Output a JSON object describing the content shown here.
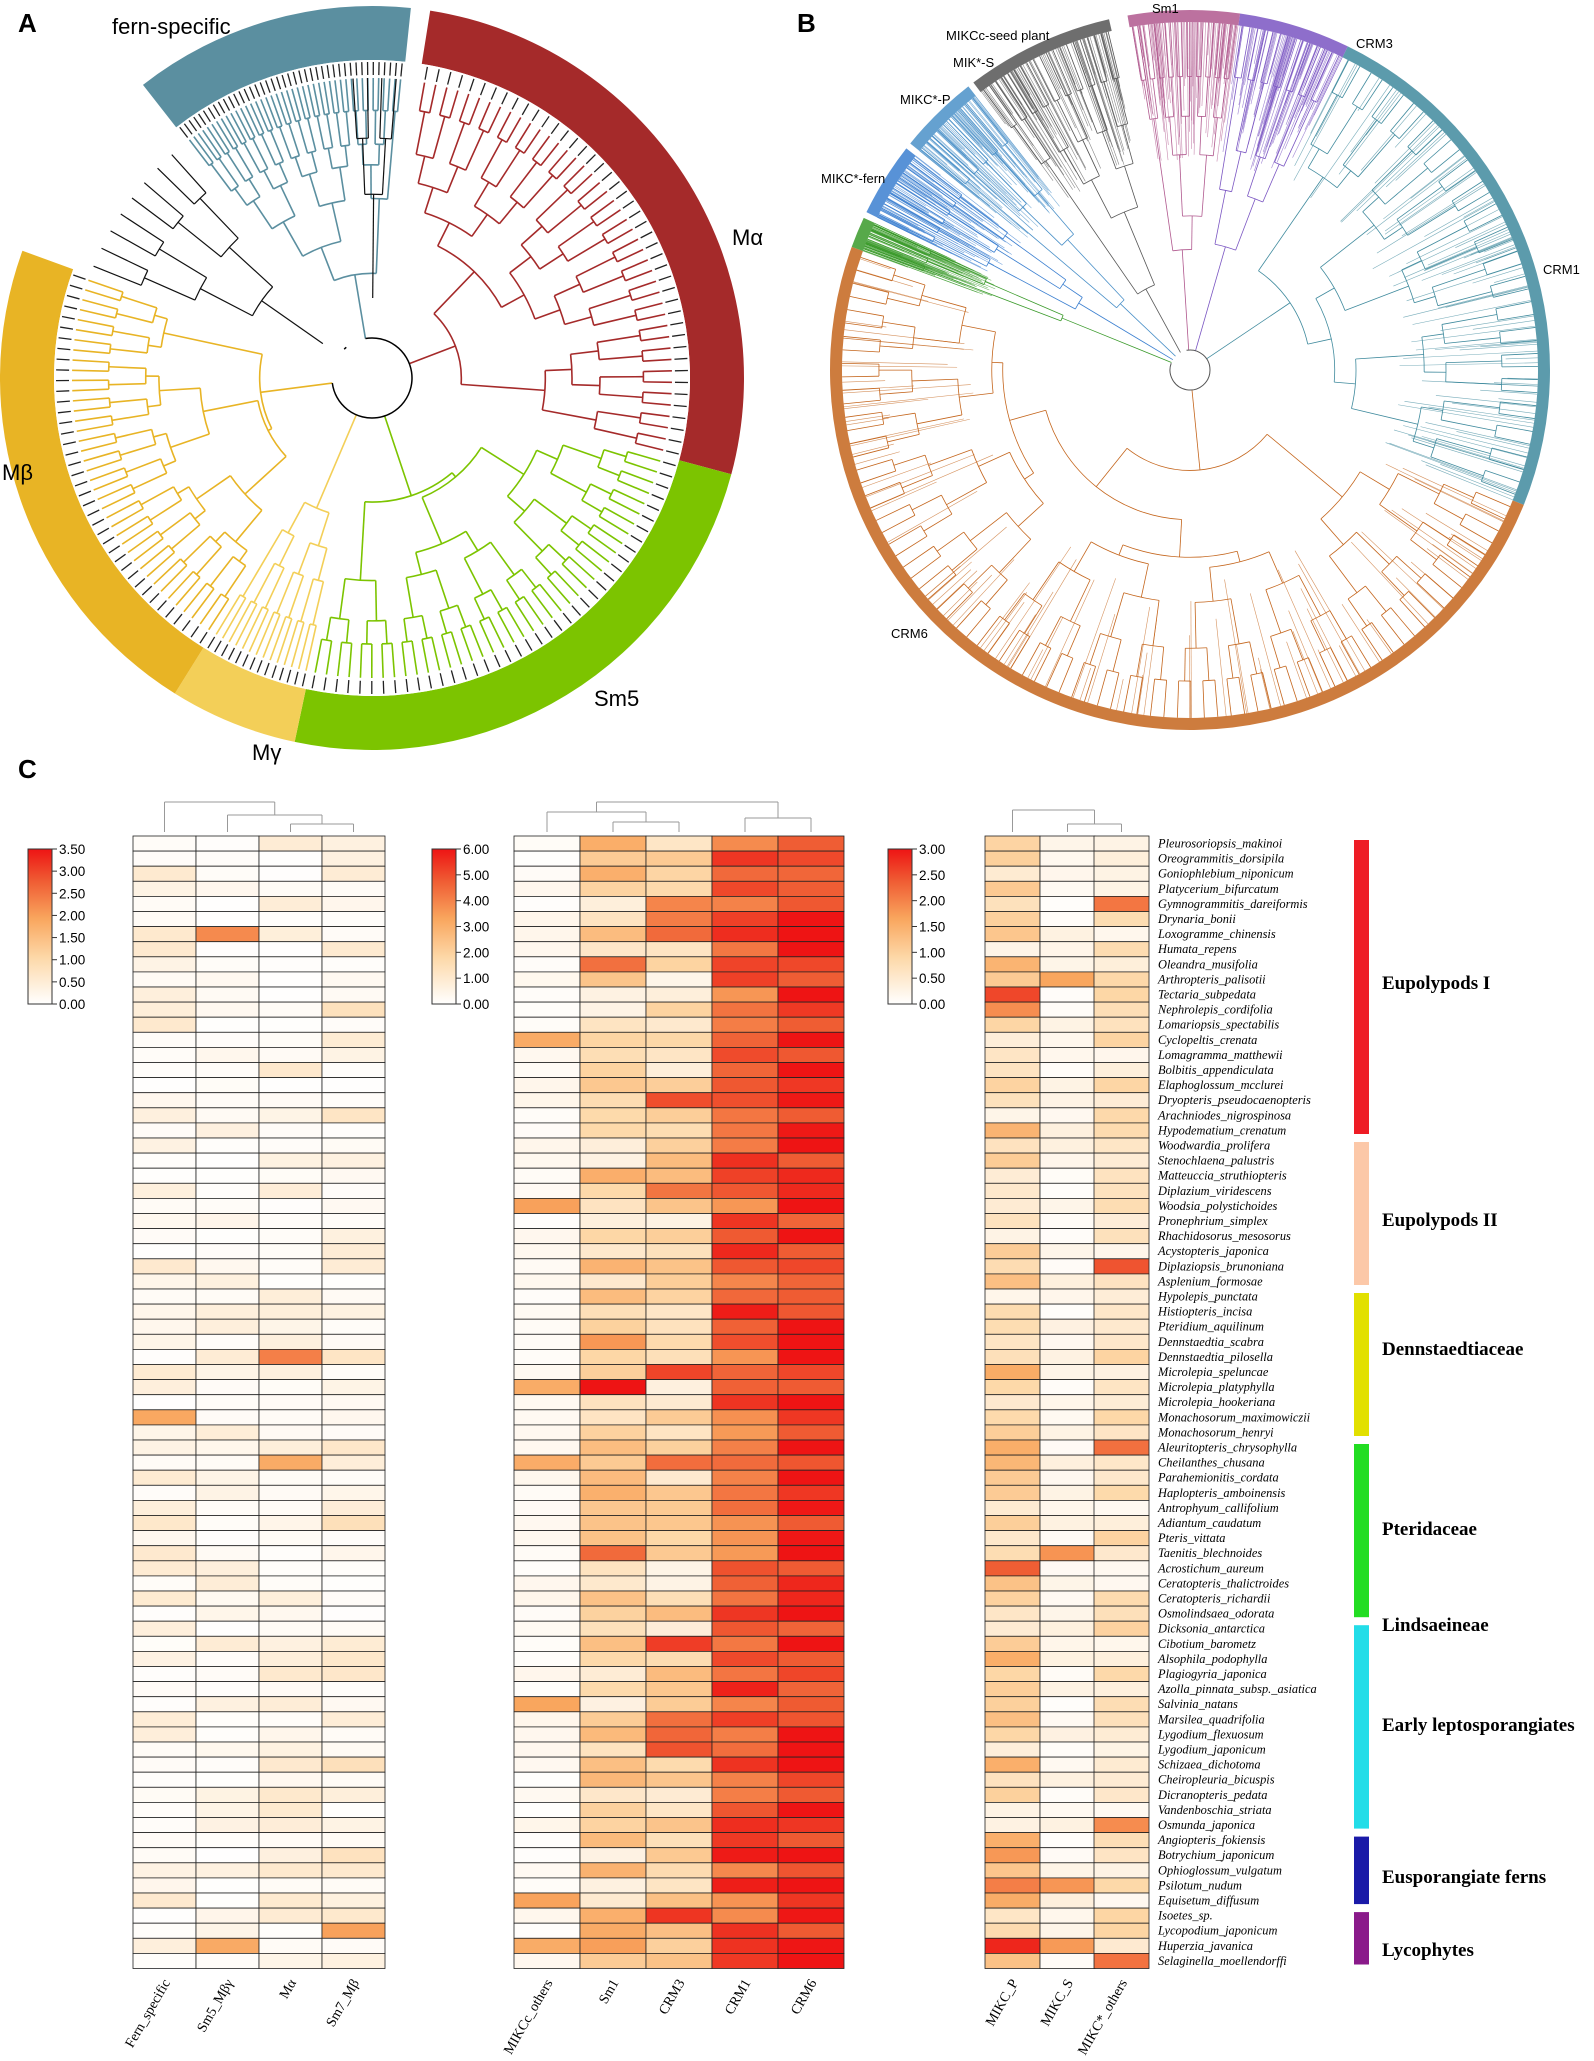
{
  "panels": {
    "a": "A",
    "b": "B",
    "c": "C"
  },
  "tree_a": {
    "clades": [
      {
        "name": "fern-specific",
        "color": "#5b8fa0"
      },
      {
        "name": "Mα",
        "color": "#a52a2a"
      },
      {
        "name": "Sm5",
        "color": "#7cc400"
      },
      {
        "name": "Mγ",
        "color": "#f3cf58"
      },
      {
        "name": "Mβ",
        "color": "#e8b425"
      }
    ]
  },
  "tree_b": {
    "clades": [
      {
        "name": "Sm1",
        "color": "#b0588e"
      },
      {
        "name": "CRM3",
        "color": "#7a55c2"
      },
      {
        "name": "CRM1",
        "color": "#3f8a9d"
      },
      {
        "name": "CRM6",
        "color": "#c4651c"
      },
      {
        "name": "MIKC*-fern",
        "color": "#3a9a2a"
      },
      {
        "name": "MIKC*-P",
        "color": "#3b7fd0"
      },
      {
        "name": "MIK*-S",
        "color": "#4a90c8"
      },
      {
        "name": "MIKCc-seed plant",
        "color": "#555555"
      }
    ]
  },
  "heatmap": {
    "species": [
      "Pleurosoriopsis_makinoi",
      "Oreogrammitis_dorsipila",
      "Goniophlebium_niponicum",
      "Platycerium_bifurcatum",
      "Gymnogrammitis_dareiformis",
      "Drynaria_bonii",
      "Loxogramme_chinensis",
      "Humata_repens",
      "Oleandra_musifolia",
      "Arthropteris_palisotii",
      "Tectaria_subpedata",
      "Nephrolepis_cordifolia",
      "Lomariopsis_spectabilis",
      "Cyclopeltis_crenata",
      "Lomagramma_matthewii",
      "Bolbitis_appendiculata",
      "Elaphoglossum_mcclurei",
      "Dryopteris_pseudocaenopteris",
      "Arachniodes_nigrospinosa",
      "Hypodematium_crenatum",
      "Woodwardia_prolifera",
      "Stenochlaena_palustris",
      "Matteuccia_struthiopteris",
      "Diplazium_viridescens",
      "Woodsia_polystichoides",
      "Pronephrium_simplex",
      "Rhachidosorus_mesosorus",
      "Acystopteris_japonica",
      "Diplaziopsis_brunoniana",
      "Asplenium_formosae",
      "Hypolepis_punctata",
      "Histiopteris_incisa",
      "Pteridium_aquilinum",
      "Dennstaedtia_scabra",
      "Dennstaedtia_pilosella",
      "Microlepia_speluncae",
      "Microlepia_platyphylla",
      "Microlepia_hookeriana",
      "Monachosorum_maximowiczii",
      "Monachosorum_henryi",
      "Aleuritopteris_chrysophylla",
      "Cheilanthes_chusana",
      "Parahemionitis_cordata",
      "Haplopteris_amboinensis",
      "Antrophyum_callifolium",
      "Adiantum_caudatum",
      "Pteris_vittata",
      "Taenitis_blechnoides",
      "Acrostichum_aureum",
      "Ceratopteris_thalictroides",
      "Ceratopteris_richardii",
      "Osmolindsaea_odorata",
      "Dicksonia_antarctica",
      "Cibotium_barometz",
      "Alsophila_podophylla",
      "Plagiogyria_japonica",
      "Azolla_pinnata_subsp._asiatica",
      "Salvinia_natans",
      "Marsilea_quadrifolia",
      "Lygodium_flexuosum",
      "Lygodium_japonicum",
      "Schizaea_dichotoma",
      "Cheiropleuria_bicuspis",
      "Dicranopteris_pedata",
      "Vandenboschia_striata",
      "Osmunda_japonica",
      "Angiopteris_fokiensis",
      "Botrychium_japonicum",
      "Ophioglossum_vulgatum",
      "Psilotum_nudum",
      "Equisetum_diffusum",
      "Isoetes_sp.",
      "Lycopodium_japonicum",
      "Huperzia_javanica",
      "Selaginella_moellendorffi"
    ],
    "groups": [
      {
        "name": "Eupolypods I",
        "color": "#ee1c25"
      },
      {
        "name": "Eupolypods II",
        "color": "#fcc8a8"
      },
      {
        "name": "Dennstaedtiaceae",
        "color": "#e2e000"
      },
      {
        "name": "Pteridaceae",
        "color": "#22dd22"
      },
      {
        "name": "Lindsaeineae",
        "color": "#22dd22"
      },
      {
        "name": "Early leptosporangiates",
        "color": "#22dde8"
      },
      {
        "name": "Eusporangiate ferns",
        "color": "#1a1aa8"
      },
      {
        "name": "Lycophytes",
        "color": "#8a1a8a"
      }
    ],
    "blocks": [
      {
        "columns": [
          "Fern_specific",
          "Sm5_Mβγ",
          "Mα",
          "Sm7_Mβ"
        ],
        "scale_ticks": [
          "3.50",
          "3.00",
          "2.50",
          "2.00",
          "1.50",
          "1.00",
          "0.50",
          "0.00"
        ],
        "max": 3.5
      },
      {
        "columns": [
          "MIKCc_others",
          "Sm1",
          "CRM3",
          "CRM1",
          "CRM6"
        ],
        "scale_ticks": [
          "6.00",
          "5.00",
          "4.00",
          "3.00",
          "2.00",
          "1.00",
          "0.00"
        ],
        "max": 6.0
      },
      {
        "columns": [
          "MIKC_P",
          "MIKC_S",
          "MIKC*_others"
        ],
        "scale_ticks": [
          "3.00",
          "2.50",
          "2.00",
          "1.50",
          "1.00",
          "0.50",
          "0.00"
        ],
        "max": 3.0
      }
    ]
  }
}
